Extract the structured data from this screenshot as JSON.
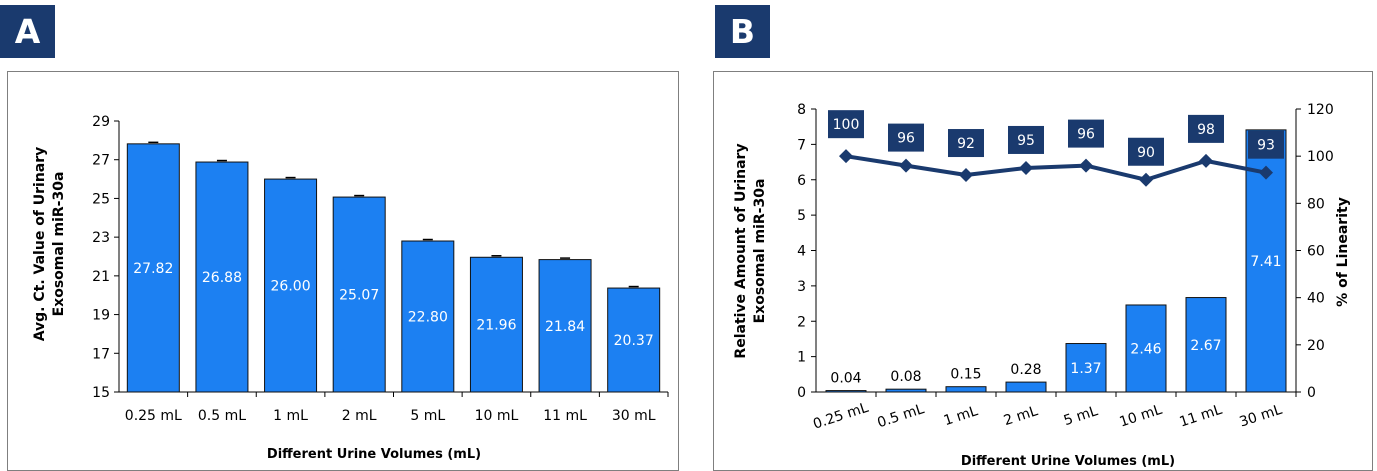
{
  "panels": {
    "a": {
      "badge": "A"
    },
    "b": {
      "badge": "B"
    }
  },
  "colors": {
    "bar": "#1c80f2",
    "bar_stroke": "#111111",
    "line": "#1a3a6e",
    "label_box": "#1a3a6e",
    "badge": "#1a3a6e"
  },
  "chart_data": [
    {
      "type": "bar",
      "title": "",
      "categories": [
        "0.25 mL",
        "0.5 mL",
        "1 mL",
        "2 mL",
        "5 mL",
        "10 mL",
        "11 mL",
        "30 mL"
      ],
      "values": [
        27.82,
        26.88,
        26.0,
        25.07,
        22.8,
        21.96,
        21.84,
        20.37
      ],
      "value_labels": [
        "27.82",
        "26.88",
        "26.00",
        "25.07",
        "22.80",
        "21.96",
        "21.84",
        "20.37"
      ],
      "error_bars": true,
      "ylim": [
        15,
        29
      ],
      "yticks": [
        "15",
        "17",
        "19",
        "21",
        "23",
        "25",
        "27",
        "29"
      ],
      "xlabel": "Different Urine Volumes (mL)",
      "ylabel": [
        "Avg. Ct. Value of Urinary",
        "Exosomal miR-30a"
      ],
      "grid": false,
      "legend": "none"
    },
    {
      "type": "bar+line",
      "title": "",
      "categories": [
        "0.25 mL",
        "0.5 mL",
        "1 mL",
        "2 mL",
        "5 mL",
        "10 mL",
        "11 mL",
        "30 mL"
      ],
      "series": [
        {
          "type": "bar",
          "axis": "left",
          "values": [
            0.04,
            0.08,
            0.15,
            0.28,
            1.37,
            2.46,
            2.67,
            7.41
          ],
          "value_labels": [
            "0.04",
            "0.08",
            "0.15",
            "0.28",
            "1.37",
            "2.46",
            "2.67",
            "7.41"
          ]
        },
        {
          "type": "line",
          "axis": "right",
          "marker": "diamond",
          "values": [
            100,
            96,
            92,
            95,
            96,
            90,
            98,
            93
          ],
          "value_labels": [
            "100",
            "96",
            "92",
            "95",
            "96",
            "90",
            "98",
            "93"
          ]
        }
      ],
      "ylim": [
        0,
        8
      ],
      "yticks": [
        "0",
        "1",
        "2",
        "3",
        "4",
        "5",
        "6",
        "7",
        "8"
      ],
      "y2lim": [
        0,
        120
      ],
      "y2ticks": [
        "0",
        "20",
        "40",
        "60",
        "80",
        "100",
        "120"
      ],
      "xlabel": "Different Urine Volumes (mL)",
      "ylabel": [
        "Relative Amount of Urinary",
        "Exosomal miR-30a"
      ],
      "y2label": "% of Linearity",
      "grid": false,
      "legend": "none"
    }
  ]
}
